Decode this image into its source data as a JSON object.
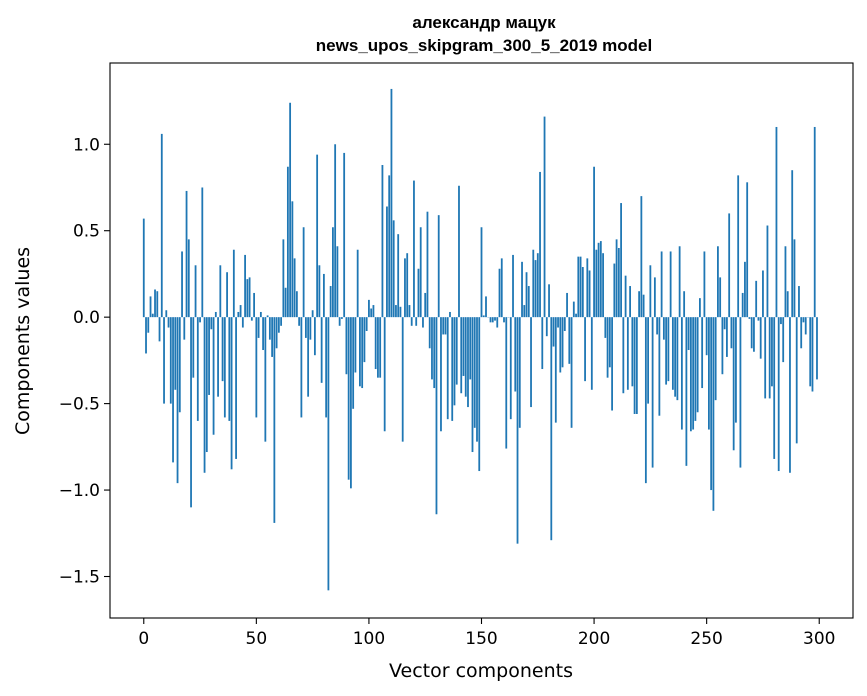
{
  "chart_data": {
    "type": "bar",
    "title": "александр мацук",
    "subtitle": "news_upos_skipgram_300_5_2019 model",
    "xlabel": "Vector components",
    "ylabel": "Components values",
    "xlim": [
      -15,
      315
    ],
    "ylim": [
      -1.74,
      1.47
    ],
    "xticks": [
      0,
      50,
      100,
      150,
      200,
      250,
      300
    ],
    "xtick_labels": [
      "0",
      "50",
      "100",
      "150",
      "200",
      "250",
      "300"
    ],
    "yticks": [
      -1.5,
      -1.0,
      -0.5,
      0.0,
      0.5,
      1.0
    ],
    "ytick_labels": [
      "−1.5",
      "−1.0",
      "−0.5",
      "0.0",
      "0.5",
      "1.0"
    ],
    "bar_color": "#1f77b4",
    "grid": false,
    "legend": "none",
    "values": [
      0.57,
      -0.21,
      -0.09,
      0.12,
      0.02,
      0.16,
      0.15,
      -0.14,
      1.06,
      -0.5,
      0.04,
      -0.06,
      -0.5,
      -0.84,
      -0.42,
      -0.96,
      -0.55,
      0.38,
      -0.13,
      0.73,
      0.45,
      -1.1,
      -0.35,
      0.3,
      -0.6,
      -0.03,
      0.75,
      -0.9,
      -0.78,
      -0.45,
      -0.07,
      -0.68,
      0.03,
      -0.46,
      0.3,
      -0.37,
      -0.58,
      0.26,
      -0.6,
      -0.88,
      0.39,
      -0.82,
      0.03,
      0.07,
      -0.06,
      0.36,
      0.22,
      0.23,
      -0.02,
      0.14,
      -0.58,
      -0.12,
      0.03,
      -0.19,
      -0.72,
      0.01,
      -0.13,
      -0.23,
      -1.19,
      -0.18,
      -0.09,
      -0.05,
      0.45,
      0.17,
      0.87,
      1.24,
      0.67,
      0.34,
      0.15,
      -0.05,
      -0.58,
      0.52,
      -0.12,
      -0.46,
      -0.13,
      0.04,
      -0.22,
      0.94,
      0.3,
      -0.38,
      0.25,
      -0.58,
      -1.58,
      0.18,
      0.52,
      1.0,
      0.41,
      -0.05,
      -0.01,
      0.95,
      -0.33,
      -0.94,
      -0.99,
      -0.53,
      -0.32,
      0.39,
      -0.4,
      -0.41,
      -0.26,
      -0.08,
      0.1,
      0.05,
      0.07,
      -0.3,
      -0.35,
      -0.35,
      0.88,
      -0.66,
      0.64,
      0.82,
      1.32,
      0.56,
      0.07,
      0.48,
      0.06,
      -0.72,
      0.34,
      0.37,
      0.07,
      -0.05,
      0.79,
      -0.05,
      0.28,
      0.52,
      -0.06,
      0.14,
      0.61,
      -0.18,
      -0.36,
      -0.41,
      -1.14,
      0.59,
      -0.66,
      -0.1,
      -0.1,
      -0.59,
      0.03,
      -0.6,
      -0.51,
      -0.39,
      0.76,
      -0.44,
      -0.34,
      -0.46,
      -0.52,
      -0.36,
      -0.78,
      -0.64,
      -0.72,
      -0.89,
      0.52,
      0.01,
      0.12,
      0.0,
      -0.03,
      -0.03,
      -0.02,
      -0.06,
      0.28,
      0.34,
      -0.03,
      -0.76,
      0.0,
      -0.59,
      0.36,
      -0.43,
      -1.31,
      -0.64,
      0.32,
      0.07,
      0.26,
      0.18,
      -0.52,
      0.39,
      0.33,
      0.37,
      0.84,
      -0.3,
      1.16,
      -0.11,
      0.19,
      -1.29,
      -0.17,
      -0.61,
      -0.06,
      -0.32,
      -0.29,
      -0.08,
      0.14,
      -0.27,
      -0.64,
      0.09,
      0.02,
      0.35,
      0.35,
      0.29,
      -0.37,
      0.34,
      0.27,
      -0.42,
      0.87,
      0.39,
      0.43,
      0.44,
      0.37,
      -0.12,
      -0.35,
      -0.29,
      -0.54,
      0.31,
      0.45,
      0.4,
      0.66,
      -0.44,
      0.24,
      -0.42,
      0.18,
      -0.4,
      -0.56,
      -0.56,
      0.15,
      0.7,
      0.13,
      -0.96,
      -0.5,
      0.3,
      -0.87,
      0.23,
      -0.1,
      -0.57,
      0.38,
      -0.13,
      -0.39,
      -0.37,
      0.38,
      -0.42,
      -0.46,
      -0.48,
      0.41,
      -0.65,
      0.15,
      -0.86,
      -0.19,
      -0.66,
      -0.65,
      -0.6,
      -0.55,
      0.11,
      -0.41,
      0.38,
      -0.22,
      -0.65,
      -1.0,
      -1.12,
      -0.48,
      0.41,
      0.23,
      -0.33,
      -0.07,
      -0.23,
      0.6,
      -0.18,
      -0.77,
      -0.61,
      0.82,
      -0.87,
      0.14,
      0.32,
      0.78,
      -0.01,
      -0.18,
      -0.2,
      0.21,
      -0.02,
      -0.24,
      0.27,
      -0.47,
      0.53,
      -0.47,
      -0.4,
      -0.82,
      1.1,
      -0.89,
      -0.04,
      -0.26,
      0.41,
      0.15,
      -0.9,
      0.85,
      0.45,
      -0.73,
      0.18,
      -0.18,
      -0.03,
      -0.1,
      0.0,
      -0.4,
      -0.43,
      1.1,
      -0.36
    ]
  }
}
